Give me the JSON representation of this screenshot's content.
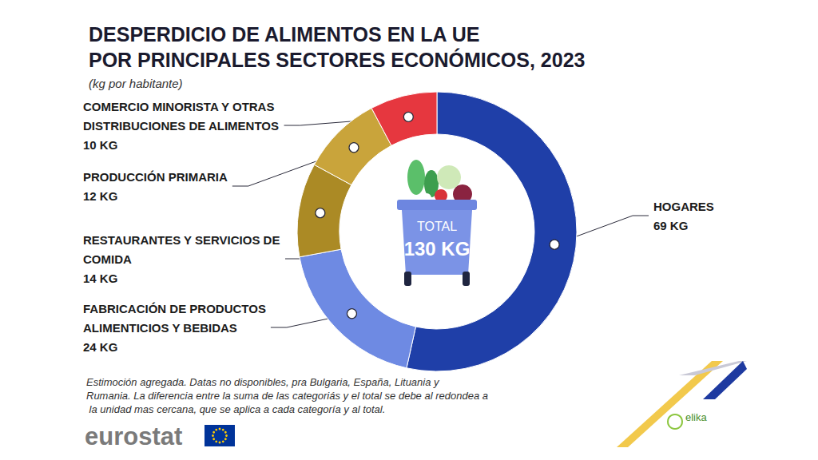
{
  "chart_data": {
    "type": "pie",
    "title": "DESPERDICIO DE ALIMENTOS EN LA UE\nPOR PRINCIPALES SECTORES ECONÓMICOS, 2023",
    "subtitle": "(kg por habitante)",
    "categories": [
      "HOGARES",
      "FABRICACIÓN DE PRODUCTOS ALIMENTICIOS Y BEBIDAS",
      "RESTAURANTES Y SERVICIOS DE COMIDA",
      "PRODUCCIÓN PRIMARIA",
      "COMERCIO MINORISTA Y OTRAS DISTRIBUCIONES DE ALIMENTOS"
    ],
    "values": [
      69,
      24,
      14,
      12,
      10
    ],
    "value_labels": [
      "69 KG",
      "24 KG",
      "14 KG",
      "12 KG",
      "10 KG"
    ],
    "colors": [
      "#1f3fa8",
      "#6e8ae3",
      "#ab8a25",
      "#c9a43b",
      "#e6373f"
    ],
    "data_labels": true,
    "total": {
      "label": "TOTAL",
      "value": 130,
      "value_label": "130 KG"
    },
    "note": "Estimoción agregada. Datas no disponibles, pra Bulgaria, España, Lituania y Rumania. La diferencia entre la suma de las categoriás y el total se debe al redondea a la unidad mas cercana, que se aplica a cada categoría y al total.",
    "source": "eurostat",
    "logo": "elika"
  }
}
